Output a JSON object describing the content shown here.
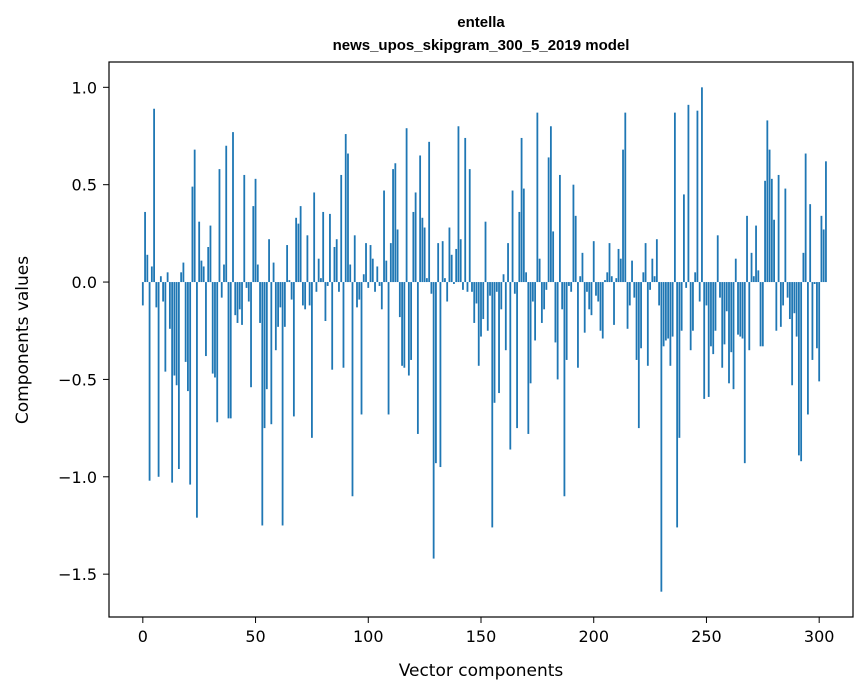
{
  "chart_data": {
    "type": "bar",
    "title_line1": "entella",
    "title_line2": "news_upos_skipgram_300_5_2019 model",
    "xlabel": "Vector components",
    "ylabel": "Components values",
    "xlim": [
      -15,
      315
    ],
    "ylim": [
      -1.72,
      1.13
    ],
    "xticks": [
      0,
      50,
      100,
      150,
      200,
      250,
      300
    ],
    "xtick_labels": [
      "0",
      "50",
      "100",
      "150",
      "200",
      "250",
      "300"
    ],
    "yticks": [
      1.0,
      0.5,
      0.0,
      -0.5,
      -1.0,
      -1.5
    ],
    "ytick_labels": [
      "1.0",
      "0.5",
      "0.0",
      "−0.5",
      "−1.0",
      "−1.5"
    ],
    "bar_color": "#1f77b4",
    "grid": false,
    "values": [
      -0.12,
      0.36,
      0.14,
      -1.02,
      0.08,
      0.89,
      -0.13,
      -1.0,
      0.03,
      -0.1,
      -0.46,
      0.05,
      -0.24,
      -1.03,
      -0.48,
      -0.53,
      -0.96,
      0.05,
      0.1,
      -0.41,
      -0.56,
      -1.04,
      0.49,
      0.68,
      -1.21,
      0.31,
      0.11,
      0.08,
      -0.38,
      0.18,
      0.29,
      -0.47,
      -0.49,
      -0.72,
      0.58,
      -0.08,
      0.09,
      0.7,
      -0.7,
      -0.7,
      0.77,
      -0.17,
      -0.21,
      -0.14,
      -0.22,
      0.55,
      -0.03,
      -0.1,
      -0.54,
      0.39,
      0.53,
      0.09,
      -0.21,
      -1.25,
      -0.75,
      -0.55,
      0.22,
      -0.73,
      0.1,
      -0.35,
      -0.23,
      -0.13,
      -1.25,
      -0.23,
      0.19,
      0.01,
      -0.09,
      -0.69,
      0.33,
      0.3,
      0.39,
      -0.12,
      -0.14,
      0.24,
      -0.12,
      -0.8,
      0.46,
      -0.05,
      0.12,
      0.02,
      0.36,
      -0.2,
      -0.02,
      0.35,
      -0.45,
      0.18,
      0.22,
      -0.05,
      0.55,
      -0.44,
      0.76,
      0.66,
      0.09,
      -1.1,
      0.24,
      -0.13,
      -0.09,
      -0.68,
      0.04,
      0.2,
      -0.03,
      0.19,
      0.12,
      -0.05,
      0.08,
      -0.02,
      -0.14,
      0.47,
      0.11,
      -0.68,
      0.2,
      0.58,
      0.61,
      0.27,
      -0.18,
      -0.43,
      -0.44,
      0.79,
      -0.48,
      -0.4,
      0.36,
      0.46,
      -0.78,
      0.65,
      0.33,
      0.28,
      0.02,
      0.72,
      -0.06,
      -1.42,
      -0.93,
      0.2,
      -0.95,
      0.21,
      0.02,
      -0.1,
      0.28,
      0.14,
      -0.01,
      0.17,
      0.8,
      0.22,
      -0.04,
      0.74,
      -0.05,
      0.58,
      -0.05,
      -0.21,
      -0.11,
      -0.43,
      -0.28,
      -0.19,
      0.31,
      -0.25,
      -0.07,
      -1.26,
      -0.62,
      -0.05,
      -0.57,
      -0.14,
      0.04,
      -0.35,
      0.2,
      -0.86,
      0.47,
      -0.06,
      -0.75,
      0.36,
      0.74,
      0.48,
      0.05,
      -0.78,
      -0.52,
      -0.1,
      -0.3,
      0.87,
      0.12,
      -0.21,
      -0.14,
      -0.04,
      0.64,
      0.8,
      0.26,
      -0.31,
      -0.5,
      0.55,
      -0.14,
      -1.1,
      -0.4,
      -0.02,
      -0.05,
      0.5,
      0.34,
      -0.44,
      0.03,
      0.15,
      -0.26,
      -0.05,
      -0.14,
      -0.17,
      0.21,
      -0.07,
      -0.1,
      -0.25,
      -0.29,
      0.01,
      0.05,
      0.2,
      0.03,
      -0.22,
      0.02,
      0.17,
      0.12,
      0.68,
      0.87,
      -0.24,
      -0.12,
      0.11,
      -0.08,
      -0.4,
      -0.75,
      -0.34,
      0.05,
      0.2,
      -0.43,
      -0.04,
      0.12,
      0.03,
      0.22,
      -0.12,
      -1.59,
      -0.33,
      -0.3,
      -0.29,
      -0.43,
      -0.28,
      0.87,
      -1.26,
      -0.8,
      -0.25,
      0.45,
      -0.03,
      0.91,
      -0.35,
      -0.25,
      0.05,
      0.88,
      -0.1,
      1.0,
      -0.6,
      -0.12,
      -0.59,
      -0.33,
      -0.37,
      -0.25,
      0.24,
      -0.08,
      -0.44,
      -0.32,
      -0.15,
      -0.52,
      -0.36,
      -0.55,
      0.12,
      -0.27,
      -0.28,
      -0.29,
      -0.93,
      0.34,
      -0.35,
      0.15,
      0.03,
      0.29,
      0.06,
      -0.33,
      -0.33,
      0.52,
      0.83,
      0.68,
      0.53,
      0.32,
      -0.25,
      0.55,
      -0.23,
      -0.12,
      0.48,
      -0.08,
      -0.19,
      -0.53,
      -0.16,
      -0.28,
      -0.89,
      -0.92,
      0.15,
      0.66,
      -0.68,
      0.4,
      -0.4,
      -0.01,
      -0.34,
      -0.51,
      0.34,
      0.27,
      0.62
    ]
  }
}
